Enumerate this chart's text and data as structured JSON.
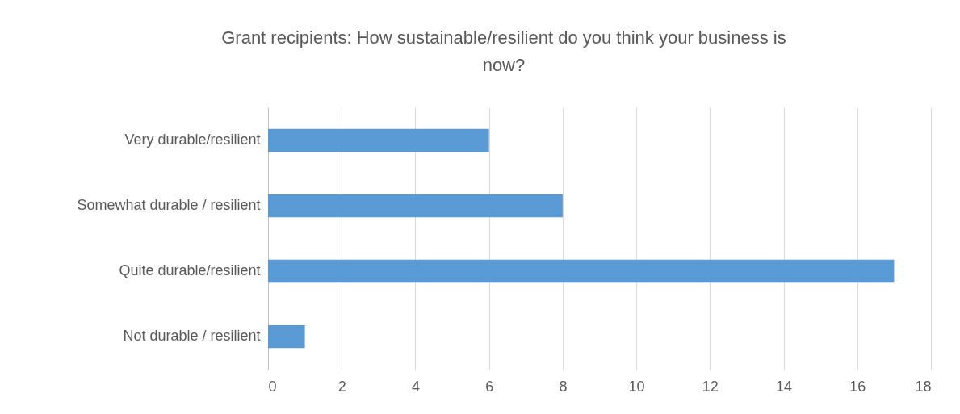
{
  "chart_data": {
    "type": "bar",
    "orientation": "horizontal",
    "title": "Grant recipients: How sustainable/resilient do you think your business is now?",
    "categories": [
      "Very durable/resilient",
      "Somewhat durable / resilient",
      "Quite durable/resilient",
      "Not durable / resilient"
    ],
    "values": [
      6,
      8,
      17,
      1
    ],
    "color": "#5b9bd5",
    "xlim": [
      0,
      18
    ],
    "xticks": [
      0,
      2,
      4,
      6,
      8,
      10,
      12,
      14,
      16,
      18
    ],
    "grid": "x"
  }
}
